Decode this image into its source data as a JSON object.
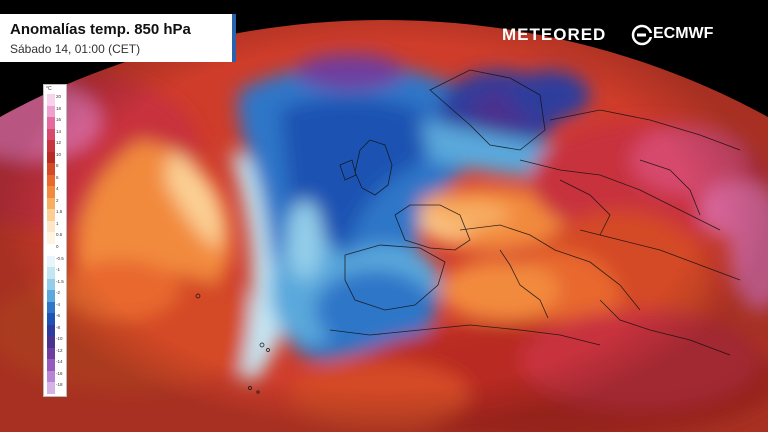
{
  "header": {
    "title": "Anomalías temp. 850 hPa",
    "subtitle": "Sábado 14, 01:00 (CET)"
  },
  "brands": {
    "meteored": "METEORED",
    "ecmwf": "ECMWF"
  },
  "legend": {
    "unit": "°C",
    "ticks": [
      "20",
      "18",
      "16",
      "14",
      "12",
      "10",
      "8",
      "6",
      "4",
      "2",
      "1.5",
      "1",
      "0.5",
      "0",
      "-0.5",
      "-1",
      "-1.5",
      "-2",
      "-4",
      "-6",
      "-8",
      "-10",
      "-12",
      "-14",
      "-16",
      "-18"
    ],
    "colors": [
      "#f7d2ea",
      "#ef9fd0",
      "#e46aa0",
      "#d64a6d",
      "#c8333e",
      "#b92a22",
      "#d44a26",
      "#e8682d",
      "#f28a3e",
      "#f7ad62",
      "#fbcf93",
      "#fde6c5",
      "#fff3e2",
      "#ffffff",
      "#e9f5fb",
      "#c4e6f3",
      "#93cde9",
      "#5aa8dc",
      "#2f76c8",
      "#1f52b2",
      "#2d3c9c",
      "#4a338f",
      "#6f3d9e",
      "#955abb",
      "#b885d4",
      "#d7b2e6"
    ]
  },
  "icons": {
    "ecmwf_mark": "ecmwf-logo-icon"
  }
}
